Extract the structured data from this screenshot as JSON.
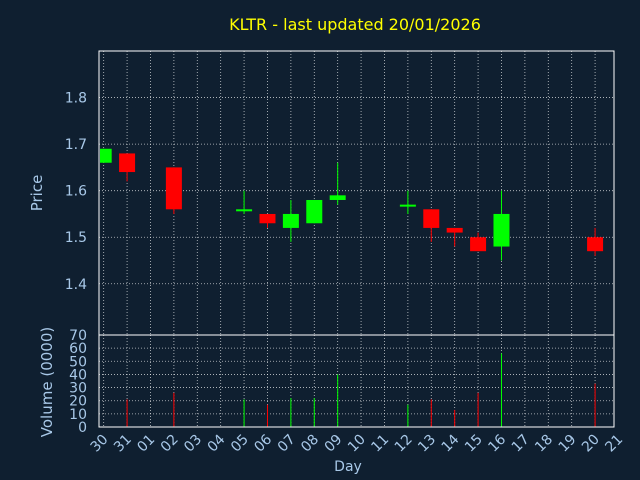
{
  "colors": {
    "background": "#0f1f30",
    "title": "#ffff00",
    "axis_text": "#a8c8e8",
    "frame": "#ffffff",
    "grid": "#ffffff",
    "up": "#00ff00",
    "down": "#ff0000"
  },
  "chart_data": [
    {
      "type": "candlestick",
      "title": "KLTR - last updated 20/01/2026",
      "ylabel": "Price",
      "ylim": [
        1.29,
        1.9
      ],
      "yticks": [
        "1.4",
        "1.5",
        "1.6",
        "1.7",
        "1.8"
      ],
      "ytick_values": [
        1.4,
        1.5,
        1.6,
        1.7,
        1.8
      ],
      "grid": true,
      "candles": [
        {
          "day": "30",
          "open": 1.66,
          "high": 1.69,
          "low": 1.66,
          "close": 1.69
        },
        {
          "day": "31",
          "open": 1.68,
          "high": 1.68,
          "low": 1.62,
          "close": 1.64
        },
        {
          "day": "02",
          "open": 1.65,
          "high": 1.65,
          "low": 1.55,
          "close": 1.56
        },
        {
          "day": "05",
          "open": 1.56,
          "high": 1.6,
          "low": 1.55,
          "close": 1.56
        },
        {
          "day": "06",
          "open": 1.55,
          "high": 1.55,
          "low": 1.52,
          "close": 1.53
        },
        {
          "day": "07",
          "open": 1.52,
          "high": 1.58,
          "low": 1.49,
          "close": 1.55
        },
        {
          "day": "08",
          "open": 1.53,
          "high": 1.58,
          "low": 1.53,
          "close": 1.58
        },
        {
          "day": "09",
          "open": 1.58,
          "high": 1.66,
          "low": 1.57,
          "close": 1.59
        },
        {
          "day": "12",
          "open": 1.57,
          "high": 1.6,
          "low": 1.55,
          "close": 1.57
        },
        {
          "day": "13",
          "open": 1.56,
          "high": 1.56,
          "low": 1.49,
          "close": 1.52
        },
        {
          "day": "14",
          "open": 1.52,
          "high": 1.52,
          "low": 1.48,
          "close": 1.51
        },
        {
          "day": "15",
          "open": 1.5,
          "high": 1.51,
          "low": 1.47,
          "close": 1.47
        },
        {
          "day": "16",
          "open": 1.48,
          "high": 1.6,
          "low": 1.45,
          "close": 1.55
        },
        {
          "day": "20",
          "open": 1.5,
          "high": 1.52,
          "low": 1.46,
          "close": 1.47
        }
      ]
    },
    {
      "type": "bar",
      "xlabel": "Day",
      "ylabel": "Volume (0000)",
      "ylim": [
        0,
        70
      ],
      "yticks": [
        "0",
        "10",
        "20",
        "30",
        "40",
        "50",
        "60",
        "70"
      ],
      "ytick_values": [
        0,
        10,
        20,
        30,
        40,
        50,
        60,
        70
      ],
      "categories": [
        "30",
        "31",
        "01",
        "02",
        "03",
        "04",
        "05",
        "06",
        "07",
        "08",
        "09",
        "10",
        "11",
        "12",
        "13",
        "14",
        "15",
        "16",
        "17",
        "18",
        "19",
        "20",
        "21"
      ],
      "bars": [
        {
          "day": "30",
          "value": 0,
          "direction": "up"
        },
        {
          "day": "31",
          "value": 21,
          "direction": "down"
        },
        {
          "day": "02",
          "value": 26,
          "direction": "down"
        },
        {
          "day": "05",
          "value": 21,
          "direction": "up"
        },
        {
          "day": "06",
          "value": 17,
          "direction": "down"
        },
        {
          "day": "07",
          "value": 22,
          "direction": "up"
        },
        {
          "day": "08",
          "value": 22,
          "direction": "up"
        },
        {
          "day": "09",
          "value": 40,
          "direction": "up"
        },
        {
          "day": "12",
          "value": 17,
          "direction": "up"
        },
        {
          "day": "13",
          "value": 21,
          "direction": "down"
        },
        {
          "day": "14",
          "value": 13,
          "direction": "down"
        },
        {
          "day": "15",
          "value": 26,
          "direction": "down"
        },
        {
          "day": "16",
          "value": 56,
          "direction": "up"
        },
        {
          "day": "20",
          "value": 33,
          "direction": "down"
        }
      ]
    }
  ]
}
